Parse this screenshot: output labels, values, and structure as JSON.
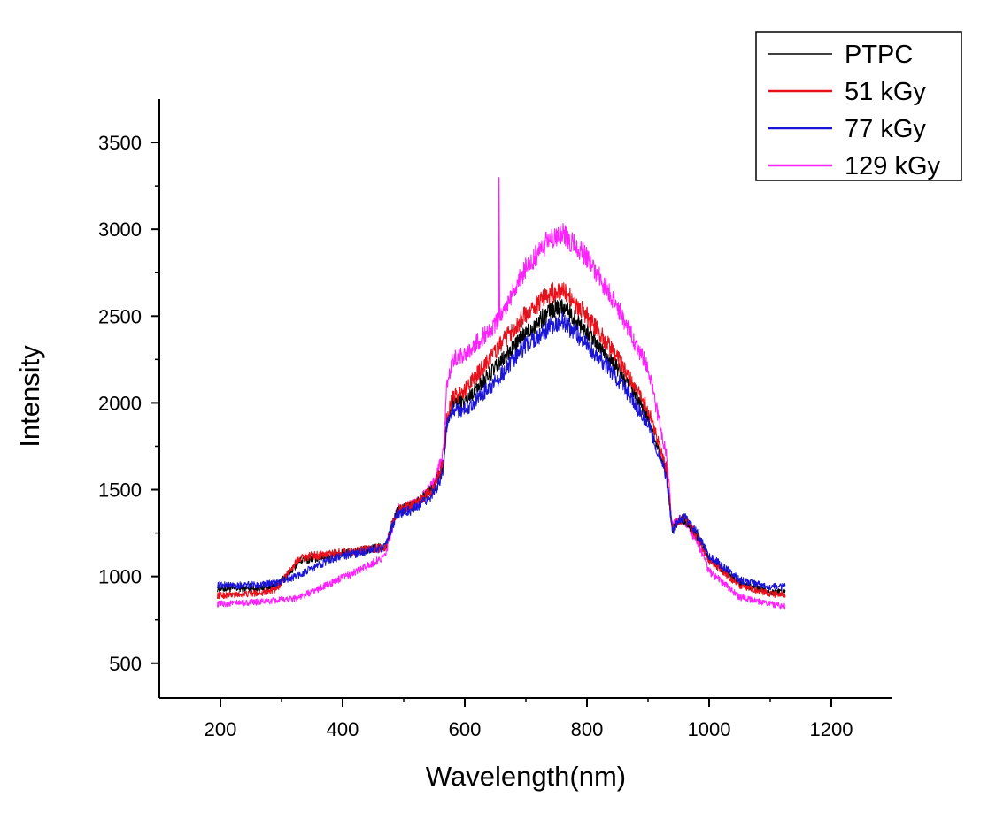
{
  "chart_data": {
    "type": "line",
    "title": "",
    "xlabel": "Wavelength(nm)",
    "ylabel": "Intensity",
    "xlim": [
      100,
      1300
    ],
    "ylim": [
      300,
      3750
    ],
    "x_ticks": [
      200,
      400,
      600,
      800,
      1000,
      1200
    ],
    "x_tick_labels": [
      "200",
      "400",
      "600",
      "800",
      "1000",
      "1200"
    ],
    "y_ticks": [
      500,
      1000,
      1500,
      2000,
      2500,
      3000,
      3500
    ],
    "y_tick_labels": [
      "500",
      "1000",
      "1500",
      "2000",
      "2500",
      "3000",
      "3500"
    ],
    "grid": false,
    "legend_position": "top-right",
    "x": [
      195,
      250,
      290,
      330,
      380,
      430,
      470,
      480,
      490,
      520,
      550,
      565,
      570,
      580,
      600,
      650,
      700,
      740,
      760,
      800,
      850,
      900,
      930,
      940,
      950,
      960,
      980,
      1000,
      1050,
      1100,
      1125
    ],
    "series": [
      {
        "name": "PTPC",
        "color": "#000000",
        "values": [
          930,
          930,
          940,
          1090,
          1120,
          1150,
          1170,
          1290,
          1380,
          1420,
          1510,
          1650,
          1880,
          2000,
          2010,
          2200,
          2400,
          2530,
          2560,
          2410,
          2200,
          1920,
          1600,
          1270,
          1310,
          1330,
          1240,
          1100,
          960,
          910,
          910
        ]
      },
      {
        "name": "51 kGy",
        "color": "#e8101a",
        "values": [
          890,
          900,
          920,
          1110,
          1130,
          1150,
          1170,
          1290,
          1380,
          1420,
          1510,
          1660,
          1900,
          2030,
          2070,
          2300,
          2510,
          2630,
          2650,
          2500,
          2260,
          1960,
          1620,
          1270,
          1320,
          1330,
          1230,
          1090,
          950,
          900,
          890
        ]
      },
      {
        "name": "77 kGy",
        "color": "#1a14d6",
        "values": [
          950,
          950,
          960,
          1010,
          1100,
          1140,
          1170,
          1280,
          1360,
          1390,
          1480,
          1610,
          1860,
          1960,
          1960,
          2120,
          2330,
          2440,
          2470,
          2340,
          2140,
          1880,
          1580,
          1260,
          1320,
          1340,
          1250,
          1120,
          980,
          940,
          940
        ]
      },
      {
        "name": "129 kGy",
        "color": "#ff20ff",
        "values": [
          840,
          850,
          860,
          880,
          960,
          1040,
          1120,
          1260,
          1390,
          1420,
          1540,
          1720,
          2070,
          2250,
          2280,
          2450,
          2780,
          2950,
          2980,
          2840,
          2550,
          2200,
          1700,
          1290,
          1330,
          1320,
          1200,
          1030,
          880,
          840,
          830
        ]
      }
    ],
    "annotations": [
      {
        "series": "129 kGy",
        "type": "spike",
        "x": 656,
        "value": 3300
      }
    ]
  }
}
